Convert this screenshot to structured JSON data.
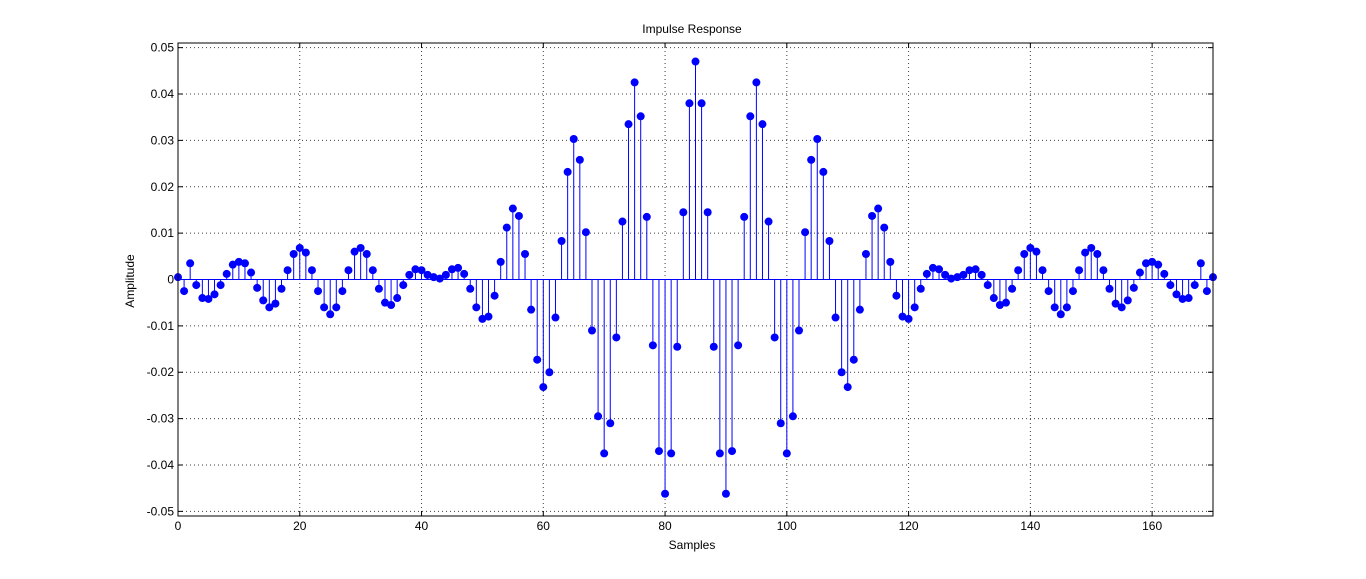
{
  "chart_data": {
    "type": "stem",
    "title": "Impulse Response",
    "xlabel": "Samples",
    "ylabel": "Amplitude",
    "xlim": [
      0,
      170
    ],
    "ylim": [
      -0.051,
      0.051
    ],
    "grid": true,
    "x_ticks": [
      0,
      20,
      40,
      60,
      80,
      100,
      120,
      140,
      160
    ],
    "x_tick_labels": [
      "0",
      "20",
      "40",
      "60",
      "80",
      "100",
      "120",
      "140",
      "160"
    ],
    "y_ticks": [
      0.05,
      0.04,
      0.03,
      0.02,
      0.01,
      0,
      -0.01,
      -0.02,
      -0.03,
      -0.04,
      -0.05
    ],
    "y_tick_labels": [
      "0.05",
      "0.04",
      "0.03",
      "0.02",
      "0.01",
      "0",
      "-0.01",
      "-0.02",
      "-0.03",
      "-0.04",
      "-0.05"
    ],
    "color": "#0000ff",
    "series": [
      {
        "x": [
          0,
          1,
          2,
          3,
          4,
          5,
          6,
          7,
          8,
          9,
          10,
          11,
          12,
          13,
          14,
          15,
          16,
          17,
          18,
          19,
          20,
          21,
          22,
          23,
          24,
          25,
          26,
          27,
          28,
          29,
          30,
          31,
          32,
          33,
          34,
          35,
          36,
          37,
          38,
          39,
          40,
          41,
          42,
          43,
          44,
          45,
          46,
          47,
          48,
          49,
          50,
          51,
          52,
          53,
          54,
          55,
          56,
          57,
          58,
          59,
          60,
          61,
          62,
          63,
          64,
          65,
          66,
          67,
          68,
          69,
          70,
          71,
          72,
          73,
          74,
          75,
          76,
          77,
          78,
          79,
          80,
          81,
          82,
          83,
          84,
          85,
          86,
          87,
          88,
          89,
          90,
          91,
          92,
          93,
          94,
          95,
          96,
          97,
          98,
          99,
          100,
          101,
          102,
          103,
          104,
          105,
          106,
          107,
          108,
          109,
          110,
          111,
          112,
          113,
          114,
          115,
          116,
          117,
          118,
          119,
          120,
          121,
          122,
          123,
          124,
          125,
          126,
          127,
          128,
          129,
          130,
          131,
          132,
          133,
          134,
          135,
          136,
          137,
          138,
          139,
          140,
          141,
          142,
          143,
          144,
          145,
          146,
          147,
          148,
          149,
          150,
          151,
          152,
          153,
          154,
          155,
          156,
          157,
          158,
          159,
          160,
          161,
          162,
          163,
          164,
          165,
          166,
          167,
          168,
          169,
          170
        ],
        "y": [
          0.0005,
          -0.0025,
          0.0035,
          -0.0012,
          -0.004,
          -0.0042,
          -0.0032,
          -0.0012,
          0.0012,
          0.0032,
          0.0038,
          0.0035,
          0.0015,
          -0.0018,
          -0.0045,
          -0.006,
          -0.0052,
          -0.002,
          0.002,
          0.0055,
          0.0068,
          0.0058,
          0.002,
          -0.0025,
          -0.006,
          -0.0075,
          -0.006,
          -0.0025,
          0.002,
          0.006,
          0.0068,
          0.0055,
          0.002,
          -0.002,
          -0.005,
          -0.0055,
          -0.004,
          -0.0012,
          0.001,
          0.0022,
          0.002,
          0.001,
          0.0005,
          0.0002,
          0.001,
          0.0022,
          0.0025,
          0.0012,
          -0.002,
          -0.006,
          -0.0085,
          -0.008,
          -0.0035,
          0.0038,
          0.0112,
          0.0153,
          0.0137,
          0.0055,
          -0.0065,
          -0.0173,
          -0.0232,
          -0.02,
          -0.0082,
          0.0083,
          0.0232,
          0.0303,
          0.0258,
          0.0102,
          -0.011,
          -0.0295,
          -0.0375,
          -0.031,
          -0.0125,
          0.0125,
          0.0335,
          0.0425,
          0.0352,
          0.0135,
          -0.0142,
          -0.037,
          -0.0462,
          -0.0375,
          -0.0145,
          0.0145,
          0.038,
          0.047,
          0.038,
          0.0145,
          -0.0145,
          -0.0375,
          -0.0462,
          -0.037,
          -0.0142,
          0.0135,
          0.0352,
          0.0425,
          0.0335,
          0.0125,
          -0.0125,
          -0.031,
          -0.0375,
          -0.0295,
          -0.011,
          0.0102,
          0.0258,
          0.0303,
          0.0232,
          0.0083,
          -0.0082,
          -0.02,
          -0.0232,
          -0.0173,
          -0.0065,
          0.0055,
          0.0137,
          0.0153,
          0.0112,
          0.0038,
          -0.0035,
          -0.008,
          -0.0085,
          -0.006,
          -0.002,
          0.0012,
          0.0025,
          0.0022,
          0.001,
          0.0002,
          0.0005,
          0.001,
          0.002,
          0.0022,
          0.001,
          -0.0012,
          -0.004,
          -0.0055,
          -0.005,
          -0.002,
          0.002,
          0.0055,
          0.0068,
          0.006,
          0.002,
          -0.0025,
          -0.006,
          -0.0075,
          -0.006,
          -0.0025,
          0.002,
          0.0058,
          0.0068,
          0.0055,
          0.002,
          -0.002,
          -0.0052,
          -0.006,
          -0.0045,
          -0.0018,
          0.0015,
          0.0035,
          0.0038,
          0.0032,
          0.0012,
          -0.0012,
          -0.0032,
          -0.0042,
          -0.004,
          -0.0012,
          0.0035,
          -0.0025,
          0.0005
        ]
      }
    ]
  }
}
